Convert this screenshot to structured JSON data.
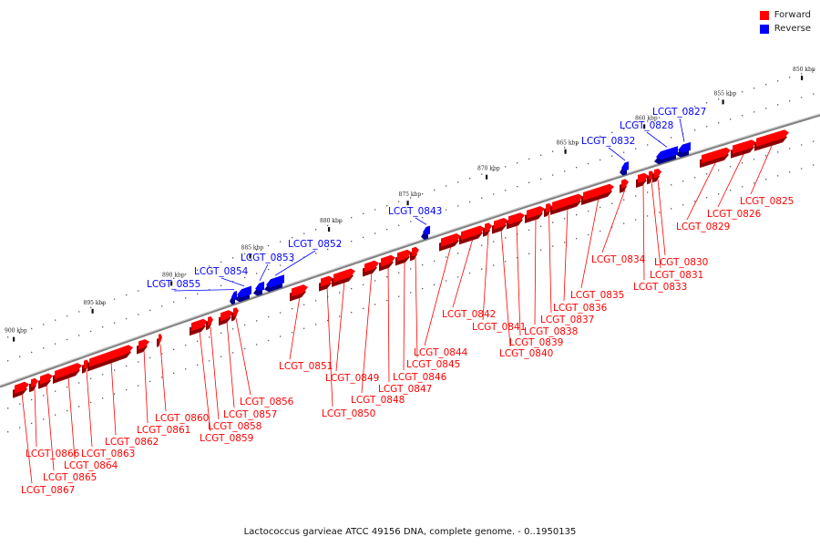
{
  "title": "Lactococcus garvieae ATCC 49156 DNA, complete genome. - 0..1950135",
  "legend": [
    {
      "name": "Forward",
      "color": "#ff0000"
    },
    {
      "name": "Reverse",
      "color": "#0000ff"
    }
  ],
  "colors": {
    "forward": "#ff0000",
    "reverse": "#0000ff",
    "backbone": "#808080"
  },
  "ticks": [
    {
      "kbp": 850,
      "label": "850 kbp"
    },
    {
      "kbp": 855,
      "label": "855 kbp"
    },
    {
      "kbp": 860,
      "label": "860 kbp"
    },
    {
      "kbp": 865,
      "label": "865 kbp"
    },
    {
      "kbp": 870,
      "label": "870 kbp"
    },
    {
      "kbp": 875,
      "label": "875 kbp"
    },
    {
      "kbp": 880,
      "label": "880 kbp"
    },
    {
      "kbp": 885,
      "label": "885 kbp"
    },
    {
      "kbp": 890,
      "label": "890 kbp"
    },
    {
      "kbp": 895,
      "label": "895 kbp"
    },
    {
      "kbp": 900,
      "label": "900 kbp"
    }
  ],
  "genes": [
    {
      "name": "LCGT_0825",
      "strand": "forward"
    },
    {
      "name": "LCGT_0826",
      "strand": "forward"
    },
    {
      "name": "LCGT_0827",
      "strand": "reverse"
    },
    {
      "name": "LCGT_0828",
      "strand": "reverse"
    },
    {
      "name": "LCGT_0829",
      "strand": "forward"
    },
    {
      "name": "LCGT_0830",
      "strand": "forward"
    },
    {
      "name": "LCGT_0831",
      "strand": "forward"
    },
    {
      "name": "LCGT_0832",
      "strand": "reverse"
    },
    {
      "name": "LCGT_0833",
      "strand": "forward"
    },
    {
      "name": "LCGT_0834",
      "strand": "forward"
    },
    {
      "name": "LCGT_0835",
      "strand": "forward"
    },
    {
      "name": "LCGT_0836",
      "strand": "forward"
    },
    {
      "name": "LCGT_0837",
      "strand": "forward"
    },
    {
      "name": "LCGT_0838",
      "strand": "forward"
    },
    {
      "name": "LCGT_0839",
      "strand": "forward"
    },
    {
      "name": "LCGT_0840",
      "strand": "forward"
    },
    {
      "name": "LCGT_0841",
      "strand": "forward"
    },
    {
      "name": "LCGT_0842",
      "strand": "forward"
    },
    {
      "name": "LCGT_0843",
      "strand": "reverse"
    },
    {
      "name": "LCGT_0844",
      "strand": "forward"
    },
    {
      "name": "LCGT_0845",
      "strand": "forward"
    },
    {
      "name": "LCGT_0846",
      "strand": "forward"
    },
    {
      "name": "LCGT_0847",
      "strand": "forward"
    },
    {
      "name": "LCGT_0848",
      "strand": "forward"
    },
    {
      "name": "LCGT_0849",
      "strand": "forward"
    },
    {
      "name": "LCGT_0850",
      "strand": "forward"
    },
    {
      "name": "LCGT_0851",
      "strand": "forward"
    },
    {
      "name": "LCGT_0852",
      "strand": "reverse"
    },
    {
      "name": "LCGT_0853",
      "strand": "reverse"
    },
    {
      "name": "LCGT_0854",
      "strand": "reverse"
    },
    {
      "name": "LCGT_0855",
      "strand": "reverse"
    },
    {
      "name": "LCGT_0856",
      "strand": "forward"
    },
    {
      "name": "LCGT_0857",
      "strand": "forward"
    },
    {
      "name": "LCGT_0858",
      "strand": "forward"
    },
    {
      "name": "LCGT_0859",
      "strand": "forward"
    },
    {
      "name": "LCGT_0860",
      "strand": "forward"
    },
    {
      "name": "LCGT_0861",
      "strand": "forward"
    },
    {
      "name": "LCGT_0862",
      "strand": "forward"
    },
    {
      "name": "LCGT_0863",
      "strand": "forward"
    },
    {
      "name": "LCGT_0864",
      "strand": "forward"
    },
    {
      "name": "LCGT_0865",
      "strand": "forward"
    },
    {
      "name": "LCGT_0866",
      "strand": "forward"
    },
    {
      "name": "LCGT_0867",
      "strand": "forward"
    }
  ]
}
